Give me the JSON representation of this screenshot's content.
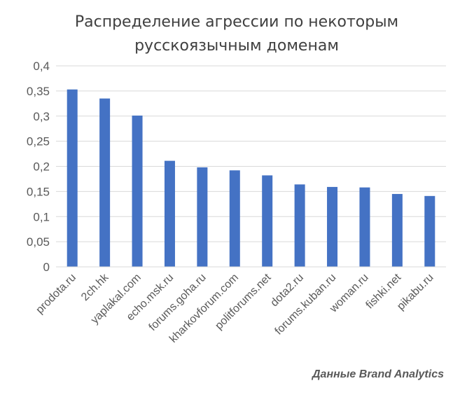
{
  "chart_data": {
    "type": "bar",
    "title_lines": [
      "Распределение агрессии по некоторым",
      "русскоязычным доменам"
    ],
    "xlabel": "",
    "ylabel": "",
    "ylim": [
      0,
      0.4
    ],
    "yticks": [
      "0",
      "0,05",
      "0,1",
      "0,15",
      "0,2",
      "0,25",
      "0,3",
      "0,35",
      "0,4"
    ],
    "categories": [
      "prodota.ru",
      "2ch.hk",
      "yaplakal.com",
      "echo.msk.ru",
      "forums.goha.ru",
      "kharkovforum.com",
      "politforums.net",
      "dota2.ru",
      "forums.kuban.ru",
      "woman.ru",
      "fishki.net",
      "pikabu.ru"
    ],
    "values": [
      0.353,
      0.335,
      0.301,
      0.211,
      0.198,
      0.192,
      0.182,
      0.164,
      0.159,
      0.158,
      0.145,
      0.141
    ],
    "bar_color": "#4472c4",
    "grid": true,
    "legend": "none"
  },
  "source_note": "Данные Brand Analytics"
}
